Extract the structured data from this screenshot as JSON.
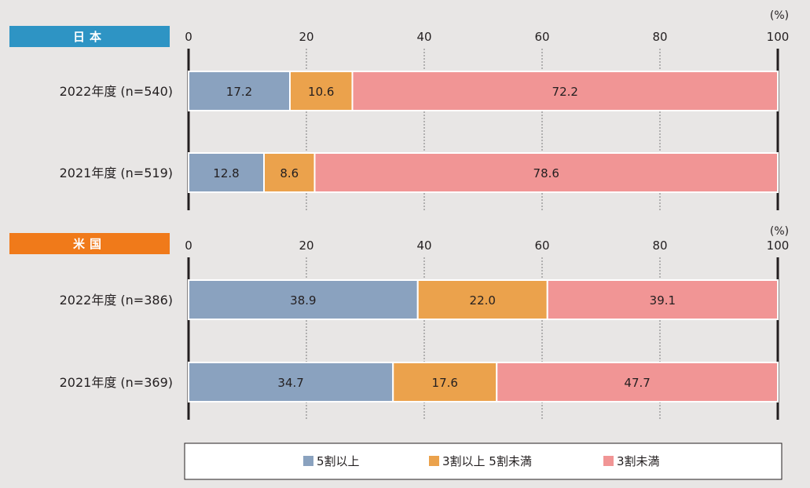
{
  "colors": {
    "series": [
      "#8aa2bf",
      "#eba24c",
      "#f19595"
    ],
    "japan_badge": "#2e94c4",
    "usa_badge": "#f07a1a"
  },
  "chart_data": [
    {
      "type": "bar",
      "orientation": "horizontal",
      "stacked": true,
      "panel_label": "日本",
      "unit_label": "(%)",
      "categories": [
        "2022年度 (n=540)",
        "2021年度 (n=519)"
      ],
      "series": [
        {
          "name": "5割以上",
          "values": [
            17.2,
            12.8
          ]
        },
        {
          "name": "3割以上 5割未満",
          "values": [
            10.6,
            8.6
          ]
        },
        {
          "name": "3割未満",
          "values": [
            72.2,
            78.6
          ]
        }
      ],
      "xlim": [
        0,
        100
      ],
      "xticks": [
        "0",
        "20",
        "40",
        "60",
        "80",
        "100"
      ],
      "grid": true
    },
    {
      "type": "bar",
      "orientation": "horizontal",
      "stacked": true,
      "panel_label": "米国",
      "unit_label": "(%)",
      "categories": [
        "2022年度 (n=386)",
        "2021年度 (n=369)"
      ],
      "series": [
        {
          "name": "5割以上",
          "values": [
            38.9,
            34.7
          ]
        },
        {
          "name": "3割以上 5割未満",
          "values": [
            22.0,
            17.6
          ]
        },
        {
          "name": "3割未満",
          "values": [
            39.1,
            47.7
          ]
        }
      ],
      "xlim": [
        0,
        100
      ],
      "xticks": [
        "0",
        "20",
        "40",
        "60",
        "80",
        "100"
      ],
      "grid": true
    }
  ],
  "legend": {
    "position": "bottom",
    "items": [
      "5割以上",
      "3割以上 5割未満",
      "3割未満"
    ]
  }
}
